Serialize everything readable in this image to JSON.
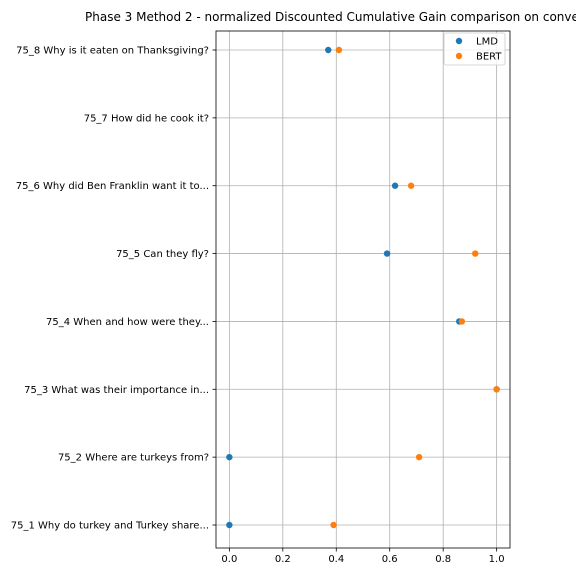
{
  "chart_data": {
    "type": "scatter",
    "title": "Phase 3 Method 2 - normalized Discounted Cumulative Gain comparison on conve",
    "xlabel": "",
    "ylabel": "",
    "xlim": [
      -0.05,
      1.05
    ],
    "xticks": [
      0.0,
      0.2,
      0.4,
      0.6,
      0.8,
      1.0
    ],
    "xtick_labels": [
      "0.0",
      "0.2",
      "0.4",
      "0.6",
      "0.8",
      "1.0"
    ],
    "grid": true,
    "legend_position": "top-right",
    "categories": [
      "75_1 Why do turkey and Turkey share...",
      "75_2 Where are turkeys from?",
      "75_3 What was their importance in...",
      "75_4 When and how were they...",
      "75_5 Can they fly?",
      "75_6 Why did Ben Franklin want it to...",
      "75_7 How did he cook it?",
      "75_8 Why is it eaten on Thanksgiving?"
    ],
    "series": [
      {
        "name": "LMD",
        "color": "#1f77b4",
        "values": [
          0.0,
          0.0,
          1.0,
          0.86,
          0.59,
          0.62,
          null,
          0.37
        ]
      },
      {
        "name": "BERT",
        "color": "#ff7f0e",
        "values": [
          0.39,
          0.71,
          1.0,
          0.87,
          0.92,
          0.68,
          null,
          0.41
        ]
      }
    ]
  }
}
